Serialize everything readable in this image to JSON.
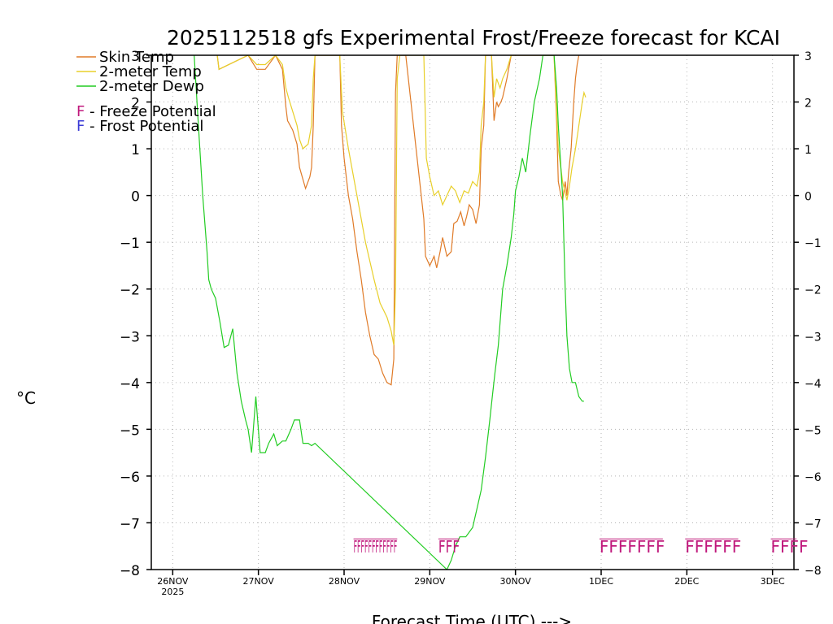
{
  "chart_data": {
    "type": "line",
    "title": "2025112518 gfs Experimental Frost/Freeze forecast for KCAI",
    "xlabel": "Forecast Time (UTC) --->",
    "ylabel_unit": "°C",
    "xlim": [
      -0.25,
      7.25
    ],
    "ylim": [
      -8,
      3
    ],
    "grid": true,
    "y_ticks": [
      "3",
      "2",
      "1",
      "0",
      "−1",
      "−2",
      "−3",
      "−4",
      "−5",
      "−6",
      "−7",
      "−8"
    ],
    "y_tick_values": [
      3,
      2,
      1,
      0,
      -1,
      -2,
      -3,
      -4,
      -5,
      -6,
      -7,
      -8
    ],
    "x_ticks": [
      {
        "value": 0,
        "label": "26NOV",
        "sublabel": "2025"
      },
      {
        "value": 1,
        "label": "27NOV",
        "sublabel": ""
      },
      {
        "value": 2,
        "label": "28NOV",
        "sublabel": ""
      },
      {
        "value": 3,
        "label": "29NOV",
        "sublabel": ""
      },
      {
        "value": 4,
        "label": "30NOV",
        "sublabel": ""
      },
      {
        "value": 5,
        "label": "1DEC",
        "sublabel": ""
      },
      {
        "value": 6,
        "label": "2DEC",
        "sublabel": ""
      },
      {
        "value": 7,
        "label": "3DEC",
        "sublabel": ""
      }
    ],
    "legend": {
      "placement": "top-left",
      "entries": [
        {
          "name": "Skin Temp",
          "color": "#e07b28"
        },
        {
          "name": "2-meter Temp",
          "color": "#e8cf2a"
        },
        {
          "name": "2-meter Dewp",
          "color": "#22cc22"
        }
      ],
      "potentials": [
        {
          "symbol": "F",
          "text": " - Freeze Potential",
          "color": "#c0197c"
        },
        {
          "symbol": "F",
          "text": " - Frost Potential",
          "color": "#3b3bd6"
        }
      ]
    },
    "series": [
      {
        "name": "Skin Temp",
        "color": "#e07b28",
        "x": [
          0.52,
          0.54,
          0.88,
          0.98,
          1.08,
          1.2,
          1.28,
          1.32,
          1.34,
          1.4,
          1.45,
          1.48,
          1.55,
          1.6,
          1.62,
          1.64,
          1.66,
          1.95,
          1.97,
          2.0,
          2.05,
          2.1,
          2.15,
          2.2,
          2.25,
          2.3,
          2.35,
          2.4,
          2.45,
          2.5,
          2.55,
          2.58,
          2.6,
          2.62,
          2.65,
          2.72,
          2.93,
          2.95,
          3.0,
          3.05,
          3.08,
          3.12,
          3.15,
          3.2,
          3.25,
          3.28,
          3.32,
          3.36,
          3.4,
          3.43,
          3.46,
          3.5,
          3.54,
          3.58,
          3.6,
          3.63,
          3.65,
          3.72,
          3.75,
          3.78,
          3.8,
          3.83,
          3.85,
          3.9,
          3.95,
          3.98,
          4.02,
          4.05,
          4.08,
          4.45,
          4.48,
          4.5,
          4.53,
          4.55,
          4.58,
          4.6,
          4.62,
          4.65,
          4.68,
          4.7,
          4.72,
          4.74
        ],
        "y": [
          3,
          2.7,
          3,
          2.7,
          2.7,
          3,
          2.7,
          1.9,
          1.6,
          1.4,
          1.1,
          0.6,
          0.15,
          0.4,
          0.6,
          1.5,
          3,
          3,
          1.5,
          0.8,
          0.0,
          -0.5,
          -1.2,
          -1.8,
          -2.5,
          -3.0,
          -3.4,
          -3.5,
          -3.8,
          -4.0,
          -4.05,
          -3.5,
          2.2,
          3,
          3,
          3,
          -0.5,
          -1.3,
          -1.5,
          -1.3,
          -1.55,
          -1.2,
          -0.9,
          -1.3,
          -1.2,
          -0.6,
          -0.55,
          -0.35,
          -0.65,
          -0.45,
          -0.2,
          -0.3,
          -0.6,
          -0.2,
          1.0,
          1.5,
          3,
          3,
          1.6,
          2.0,
          1.9,
          2.0,
          2.1,
          2.5,
          3,
          3,
          3,
          3,
          3,
          3,
          1.6,
          0.3,
          0.0,
          -0.1,
          0.3,
          0.0,
          0.5,
          1.0,
          2.0,
          2.5,
          2.8,
          3
        ]
      },
      {
        "name": "2-meter Temp",
        "color": "#e8cf2a",
        "x": [
          0.52,
          0.54,
          0.88,
          0.98,
          1.08,
          1.2,
          1.28,
          1.32,
          1.35,
          1.4,
          1.45,
          1.48,
          1.52,
          1.58,
          1.62,
          1.64,
          1.66,
          1.95,
          1.98,
          2.05,
          2.15,
          2.25,
          2.35,
          2.42,
          2.5,
          2.55,
          2.58,
          2.6,
          2.62,
          2.65,
          2.72,
          2.93,
          2.96,
          3.0,
          3.05,
          3.1,
          3.15,
          3.2,
          3.25,
          3.3,
          3.35,
          3.4,
          3.45,
          3.5,
          3.55,
          3.58,
          3.6,
          3.63,
          3.65,
          3.72,
          3.75,
          3.78,
          3.82,
          3.85,
          3.9,
          3.95,
          3.98,
          4.02,
          4.08,
          4.45,
          4.48,
          4.5,
          4.55,
          4.6,
          4.63,
          4.66,
          4.7,
          4.74,
          4.78,
          4.8,
          4.82
        ],
        "y": [
          3,
          2.7,
          3,
          2.8,
          2.8,
          3,
          2.8,
          2.3,
          2.1,
          1.8,
          1.5,
          1.2,
          1.0,
          1.1,
          1.5,
          2.5,
          3,
          3,
          1.8,
          1.0,
          0.0,
          -1.0,
          -1.8,
          -2.3,
          -2.6,
          -2.9,
          -3.2,
          -2.0,
          2.5,
          3,
          3,
          3,
          0.8,
          0.4,
          0.0,
          0.1,
          -0.2,
          0.0,
          0.2,
          0.1,
          -0.15,
          0.1,
          0.05,
          0.3,
          0.2,
          0.5,
          1.5,
          2.0,
          3,
          3,
          2.1,
          2.5,
          2.3,
          2.5,
          2.7,
          3,
          3,
          3,
          3,
          3,
          1.8,
          1.0,
          0.3,
          -0.1,
          0.2,
          0.6,
          1.0,
          1.5,
          2.0,
          2.2,
          2.1
        ]
      },
      {
        "name": "2-meter Dewp",
        "color": "#22cc22",
        "x": [
          0.25,
          0.3,
          0.35,
          0.4,
          0.42,
          0.45,
          0.5,
          0.55,
          0.6,
          0.65,
          0.7,
          0.75,
          0.8,
          0.85,
          0.88,
          0.92,
          0.97,
          1.02,
          1.08,
          1.12,
          1.18,
          1.22,
          1.28,
          1.32,
          1.38,
          1.42,
          1.48,
          1.52,
          1.58,
          1.62,
          1.66,
          3.2,
          3.25,
          3.3,
          3.35,
          3.42,
          3.5,
          3.55,
          3.6,
          3.65,
          3.7,
          3.73,
          3.76,
          3.8,
          3.85,
          3.9,
          3.95,
          3.98,
          4.0,
          4.04,
          4.08,
          4.12,
          4.17,
          4.22,
          4.28,
          4.32,
          4.35,
          4.38,
          4.42,
          4.45,
          4.48,
          4.5,
          4.55,
          4.58,
          4.6,
          4.63,
          4.66,
          4.7,
          4.74,
          4.78,
          4.8
        ],
        "y": [
          3,
          1.5,
          0.0,
          -1.2,
          -1.8,
          -2.0,
          -2.2,
          -2.7,
          -3.25,
          -3.2,
          -2.85,
          -3.8,
          -4.4,
          -4.8,
          -5.0,
          -5.5,
          -4.3,
          -5.5,
          -5.5,
          -5.3,
          -5.1,
          -5.35,
          -5.25,
          -5.25,
          -5.0,
          -4.8,
          -4.8,
          -5.3,
          -5.3,
          -5.35,
          -5.3,
          -8,
          -7.8,
          -7.5,
          -7.3,
          -7.3,
          -7.1,
          -6.7,
          -6.3,
          -5.6,
          -4.8,
          -4.3,
          -3.8,
          -3.2,
          -2.0,
          -1.5,
          -0.9,
          -0.4,
          0.1,
          0.4,
          0.8,
          0.5,
          1.3,
          2.0,
          2.5,
          3,
          3,
          3,
          3,
          3,
          2.3,
          1.5,
          0.0,
          -2.0,
          -3.0,
          -3.7,
          -4.0,
          -4.0,
          -4.3,
          -4.4,
          -4.4
        ]
      }
    ],
    "freeze_marks": {
      "color": "#c0197c",
      "y": -7.5,
      "groups": [
        {
          "text": "FFFFFFFFFFFF",
          "x_start": 2.11,
          "x_end": 2.62,
          "compressed": true
        },
        {
          "text": "FFF",
          "x_start": 3.1,
          "x_end": 3.35,
          "compressed": true
        },
        {
          "text": "FFFFFFF",
          "x_start": 4.98,
          "x_end": 5.72,
          "compressed": false
        },
        {
          "text": "FFFFFF",
          "x_start": 5.98,
          "x_end": 6.6,
          "compressed": false
        },
        {
          "text": "FFFF",
          "x_start": 6.98,
          "x_end": 7.28,
          "compressed": false
        }
      ]
    }
  }
}
